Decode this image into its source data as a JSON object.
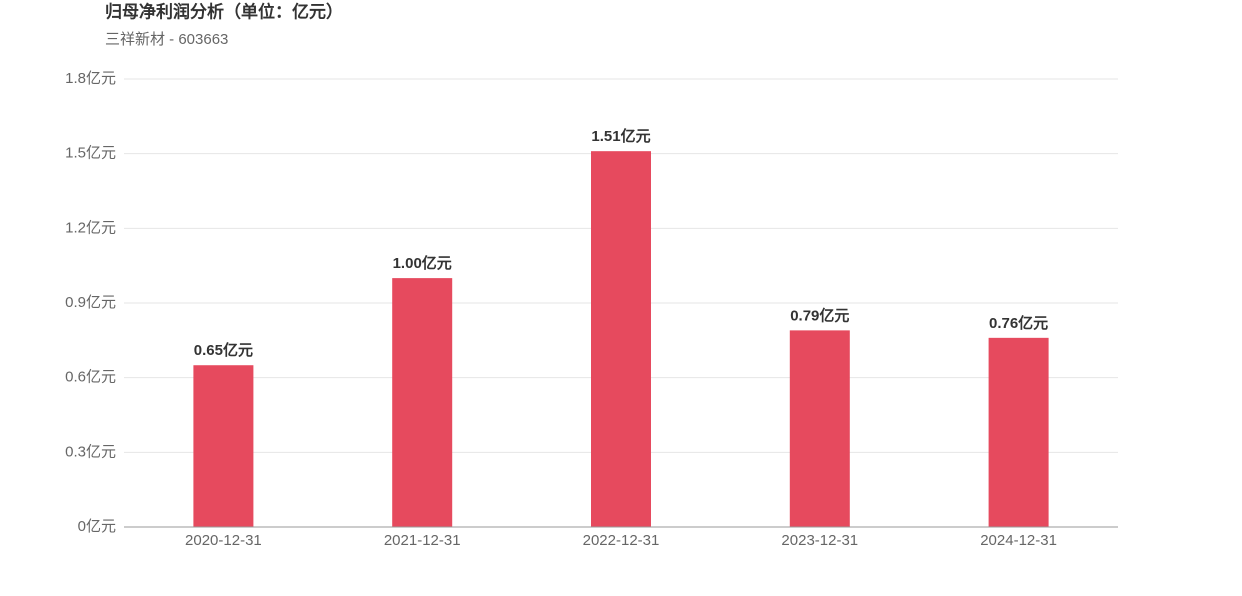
{
  "chart_data": {
    "type": "bar",
    "title": "归母净利润分析（单位：亿元）",
    "subtitle": "三祥新材 - 603663",
    "categories": [
      "2020-12-31",
      "2021-12-31",
      "2022-12-31",
      "2023-12-31",
      "2024-12-31"
    ],
    "values": [
      0.65,
      1.0,
      1.51,
      0.79,
      0.76
    ],
    "value_labels": [
      "0.65亿元",
      "1.00亿元",
      "1.51亿元",
      "0.79亿元",
      "0.76亿元"
    ],
    "color": "#e64a5e",
    "ylim": [
      0,
      1.8
    ],
    "yticks": [
      {
        "value": 0,
        "label": "0亿元"
      },
      {
        "value": 0.3,
        "label": "0.3亿元"
      },
      {
        "value": 0.6,
        "label": "0.6亿元"
      },
      {
        "value": 0.9,
        "label": "0.9亿元"
      },
      {
        "value": 1.2,
        "label": "1.2亿元"
      },
      {
        "value": 1.5,
        "label": "1.5亿元"
      },
      {
        "value": 1.8,
        "label": "1.8亿元"
      }
    ],
    "grid": true
  }
}
